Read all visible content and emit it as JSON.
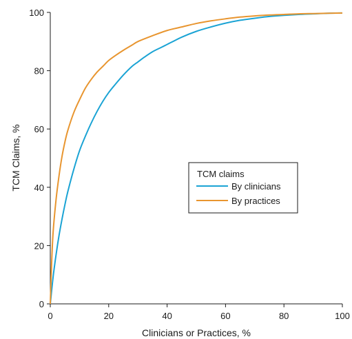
{
  "chart_data": {
    "type": "line",
    "xlabel": "Clinicians or Practices, %",
    "ylabel": "TCM Claims, %",
    "xlim": [
      0,
      100
    ],
    "ylim": [
      0,
      100
    ],
    "x_ticks": [
      0,
      20,
      40,
      60,
      80,
      100
    ],
    "y_ticks": [
      0,
      20,
      40,
      60,
      80,
      100
    ],
    "x_tick_labels": [
      "0",
      "20",
      "40",
      "60",
      "80",
      "100"
    ],
    "y_tick_labels": [
      "0",
      "20",
      "40",
      "60",
      "80",
      "100"
    ],
    "grid": false,
    "legend": {
      "title": "TCM claims",
      "placement": "center-right"
    },
    "series": [
      {
        "name": "By clinicians",
        "color": "#1aa3d4",
        "x": [
          0,
          1,
          2,
          3,
          4,
          5,
          6,
          8,
          10,
          12,
          14,
          16,
          18,
          20,
          22,
          25,
          28,
          30,
          32,
          35,
          38,
          40,
          45,
          50,
          55,
          60,
          65,
          70,
          75,
          80,
          85,
          90,
          95,
          100
        ],
        "y": [
          0,
          9.5,
          17,
          23.5,
          29,
          34,
          38.5,
          46,
          52.5,
          57.5,
          62,
          66,
          69.5,
          72.5,
          75,
          78.5,
          81.5,
          83,
          84.5,
          86.5,
          88,
          89,
          91.5,
          93.5,
          95,
          96.3,
          97.3,
          98,
          98.6,
          99,
          99.3,
          99.5,
          99.7,
          99.8
        ]
      },
      {
        "name": "By practices",
        "color": "#e8952f",
        "x": [
          0,
          0.5,
          1,
          2,
          3,
          4,
          5,
          6,
          8,
          10,
          12,
          14,
          16,
          18,
          20,
          22,
          25,
          28,
          30,
          35,
          40,
          45,
          50,
          55,
          60,
          65,
          70,
          75,
          80,
          85,
          90,
          95,
          100
        ],
        "y": [
          0,
          15,
          25,
          36,
          44,
          50.5,
          55.5,
          59.5,
          65.5,
          70,
          74,
          77,
          79.5,
          81.5,
          83.5,
          85,
          87,
          88.8,
          90,
          92,
          93.8,
          95,
          96.2,
          97.1,
          97.8,
          98.4,
          98.8,
          99.1,
          99.3,
          99.5,
          99.6,
          99.7,
          99.8
        ]
      }
    ]
  }
}
